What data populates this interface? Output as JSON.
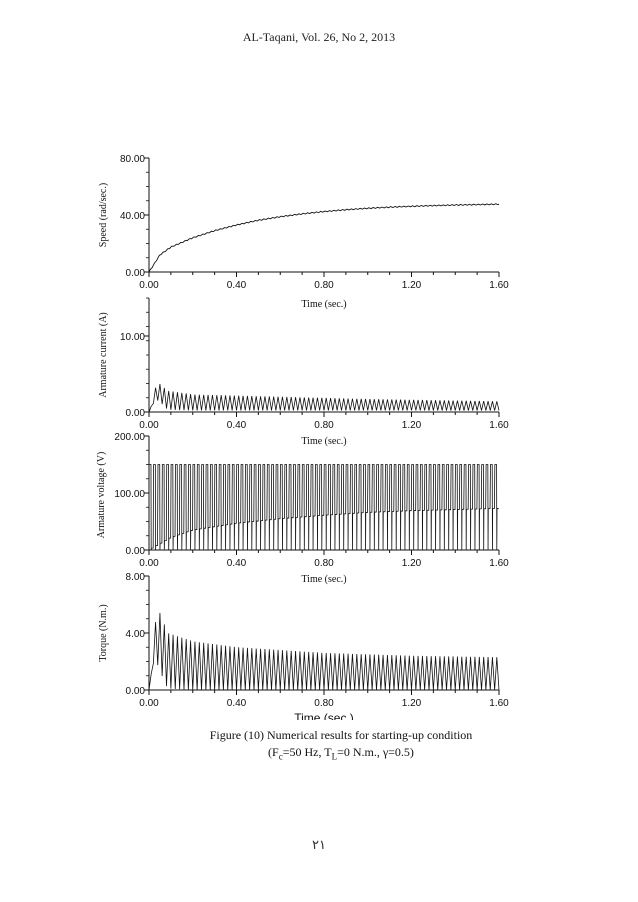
{
  "header": {
    "running_title": "AL-Taqani, Vol. 26, No 2, 2013"
  },
  "caption": {
    "line1": "Figure (10) Numerical results for starting-up condition",
    "line2_parts": [
      "(F",
      "c",
      "=50 Hz, T",
      "L",
      "=0 N.m., γ=0.5)"
    ]
  },
  "page_number": "٢١",
  "chart_data": [
    {
      "type": "line",
      "ylabel": "Speed (rad/sec.)",
      "xlabel": "Time (sec.)",
      "x_ticks": [
        "0.00",
        "0.40",
        "0.80",
        "1.20",
        "1.60"
      ],
      "y_ticks": [
        "0.00",
        "40.00",
        "80.00"
      ],
      "xlim": [
        0,
        1.6
      ],
      "ylim": [
        0,
        80
      ],
      "series": [
        {
          "x": [
            0,
            0.05,
            0.1,
            0.2,
            0.3,
            0.4,
            0.5,
            0.6,
            0.7,
            0.8,
            0.9,
            1.0,
            1.1,
            1.2,
            1.3,
            1.4,
            1.5,
            1.6
          ],
          "y": [
            0,
            12,
            17.5,
            24,
            29,
            33,
            36.3,
            38.8,
            40.8,
            42.4,
            43.7,
            44.7,
            45.5,
            46.1,
            46.6,
            47,
            47.3,
            47.6
          ]
        }
      ]
    },
    {
      "type": "line",
      "ylabel": "Armature current (A)",
      "xlabel": "Time (sec.)",
      "x_ticks": [
        "0.00",
        "0.40",
        "0.80",
        "1.20",
        "1.60"
      ],
      "y_ticks": [
        "0.00",
        "10.00"
      ],
      "xlim": [
        0,
        1.6
      ],
      "ylim": [
        0,
        15
      ],
      "series": [
        {
          "envelope_x": [
            0,
            0.02,
            0.04,
            0.08,
            0.2,
            0.6,
            1.0,
            1.6
          ],
          "envelope_upper": [
            0,
            3,
            3.8,
            2.8,
            2.3,
            2.0,
            1.7,
            1.4
          ],
          "envelope_lower": [
            0,
            1.5,
            1.5,
            0.3,
            0.2,
            0.2,
            0.2,
            0.2
          ],
          "period": 0.02
        }
      ]
    },
    {
      "type": "line",
      "ylabel": "Armature voltage (V)",
      "xlabel": "Time (sec.)",
      "x_ticks": [
        "0.00",
        "0.40",
        "0.80",
        "1.20",
        "1.60"
      ],
      "y_ticks": [
        "0.00",
        "100.00",
        "200.00"
      ],
      "xlim": [
        0,
        1.6
      ],
      "ylim": [
        0,
        200
      ],
      "series": [
        {
          "envelope_x": [
            0,
            0.1,
            0.4,
            0.8,
            1.2,
            1.6
          ],
          "envelope_upper": [
            150,
            150,
            150,
            150,
            150,
            150
          ],
          "envelope_lower_x": [
            0,
            0.1,
            0.2,
            0.4,
            0.6,
            0.8,
            1.0,
            1.2,
            1.4,
            1.6
          ],
          "envelope_lower": [
            0,
            22,
            35,
            47,
            55,
            61,
            66,
            69,
            71,
            73
          ],
          "period": 0.02
        }
      ]
    },
    {
      "type": "line",
      "ylabel": "Torque (N.m.)",
      "xlabel": "Time (sec.)",
      "x_ticks": [
        "0.00",
        "0.40",
        "0.80",
        "1.20",
        "1.60"
      ],
      "y_ticks": [
        "0.00",
        "4.00",
        "8.00"
      ],
      "xlim": [
        0,
        1.6
      ],
      "ylim": [
        0,
        8
      ],
      "series": [
        {
          "envelope_x": [
            0,
            0.02,
            0.04,
            0.08,
            0.2,
            0.4,
            0.8,
            1.2,
            1.6
          ],
          "envelope_upper": [
            0,
            4.5,
            5.6,
            4.0,
            3.4,
            3.0,
            2.6,
            2.4,
            2.3
          ],
          "envelope_lower": [
            0,
            2.5,
            1.5,
            0.1,
            0,
            0,
            0,
            0,
            0
          ],
          "period": 0.02
        }
      ]
    }
  ]
}
